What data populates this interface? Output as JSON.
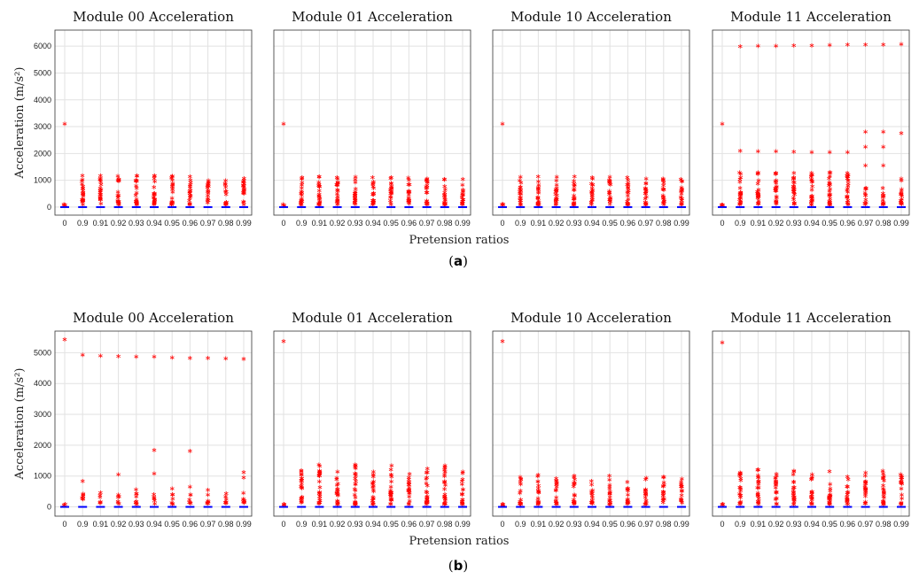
{
  "figure": {
    "rows": [
      {
        "caption": "a",
        "xlabel": "Pretension ratios",
        "ylabel": "Acceleration (m/s²)",
        "ylim": [
          -300,
          6600
        ],
        "yticks": [
          0,
          1000,
          2000,
          3000,
          4000,
          5000,
          6000
        ]
      },
      {
        "caption": "b",
        "xlabel": "Pretension ratios",
        "ylabel": "Acceleration (m/s²)",
        "ylim": [
          -300,
          5700
        ],
        "yticks": [
          0,
          1000,
          2000,
          3000,
          4000,
          5000
        ]
      }
    ]
  },
  "chart_data": [
    {
      "type": "scatter",
      "title": "Module 00 Acceleration",
      "xlabel": "",
      "ylabel": "Acceleration (m/s²)",
      "categories": [
        "0",
        "0.9",
        "0.91",
        "0.92",
        "0.93",
        "0.94",
        "0.95",
        "0.96",
        "0.97",
        "0.98",
        "0.99"
      ],
      "ylim": [
        -300,
        6600
      ],
      "grid": true,
      "outlier_color": "#ff0000",
      "median_color": "#0000ff",
      "outlier_max": [
        3050,
        1080,
        1080,
        1070,
        1080,
        1080,
        1060,
        1040,
        900,
        900,
        980
      ],
      "isolated_outliers": []
    },
    {
      "type": "scatter",
      "title": "Module 01 Acceleration",
      "xlabel": "",
      "ylabel": "",
      "categories": [
        "0",
        "0.9",
        "0.91",
        "0.92",
        "0.93",
        "0.94",
        "0.95",
        "0.96",
        "0.97",
        "0.98",
        "0.99"
      ],
      "ylim": [
        -300,
        6600
      ],
      "grid": true,
      "outlier_color": "#ff0000",
      "median_color": "#0000ff",
      "outlier_max": [
        3050,
        1020,
        1040,
        1020,
        1030,
        1010,
        1020,
        1000,
        960,
        950,
        940
      ],
      "isolated_outliers": []
    },
    {
      "type": "scatter",
      "title": "Module 10 Acceleration",
      "xlabel": "",
      "ylabel": "",
      "categories": [
        "0",
        "0.9",
        "0.91",
        "0.92",
        "0.93",
        "0.94",
        "0.95",
        "0.96",
        "0.97",
        "0.98",
        "0.99"
      ],
      "ylim": [
        -300,
        6600
      ],
      "grid": true,
      "outlier_color": "#ff0000",
      "median_color": "#0000ff",
      "outlier_max": [
        3050,
        1030,
        1050,
        1030,
        1040,
        1010,
        1030,
        1010,
        970,
        960,
        950
      ],
      "isolated_outliers": []
    },
    {
      "type": "scatter",
      "title": "Module 11 Acceleration",
      "xlabel": "",
      "ylabel": "",
      "categories": [
        "0",
        "0.9",
        "0.91",
        "0.92",
        "0.93",
        "0.94",
        "0.95",
        "0.96",
        "0.97",
        "0.98",
        "0.99"
      ],
      "ylim": [
        -300,
        6600
      ],
      "grid": true,
      "outlier_color": "#ff0000",
      "median_color": "#0000ff",
      "outlier_max": [
        3050,
        1200,
        1200,
        1180,
        1180,
        1180,
        1200,
        1180,
        620,
        620,
        900
      ],
      "isolated_outliers": [
        [
          1,
          5940
        ],
        [
          2,
          5950
        ],
        [
          3,
          5960
        ],
        [
          4,
          5970
        ],
        [
          5,
          5980
        ],
        [
          6,
          5990
        ],
        [
          7,
          6000
        ],
        [
          8,
          6000
        ],
        [
          9,
          6010
        ],
        [
          10,
          6020
        ],
        [
          1,
          2040
        ],
        [
          2,
          2030
        ],
        [
          3,
          2020
        ],
        [
          4,
          2010
        ],
        [
          5,
          2000
        ],
        [
          6,
          2000
        ],
        [
          7,
          2000
        ],
        [
          8,
          2750
        ],
        [
          8,
          2200
        ],
        [
          8,
          1500
        ],
        [
          9,
          2750
        ],
        [
          9,
          2200
        ],
        [
          9,
          1500
        ],
        [
          10,
          2700
        ],
        [
          10,
          1000
        ]
      ]
    },
    {
      "type": "scatter",
      "title": "Module 00 Acceleration",
      "xlabel": "",
      "ylabel": "Acceleration (m/s²)",
      "categories": [
        "0",
        "0.9",
        "0.91",
        "0.92",
        "0.93",
        "0.94",
        "0.95",
        "0.96",
        "0.97",
        "0.98",
        "0.99"
      ],
      "ylim": [
        -300,
        5700
      ],
      "grid": true,
      "outlier_color": "#ff0000",
      "median_color": "#0000ff",
      "outlier_max": [
        0,
        330,
        380,
        300,
        480,
        320,
        320,
        310,
        310,
        350,
        360
      ],
      "isolated_outliers": [
        [
          0,
          5380
        ],
        [
          1,
          4880
        ],
        [
          2,
          4850
        ],
        [
          3,
          4840
        ],
        [
          4,
          4830
        ],
        [
          5,
          4820
        ],
        [
          6,
          4800
        ],
        [
          7,
          4780
        ],
        [
          8,
          4780
        ],
        [
          9,
          4770
        ],
        [
          10,
          4750
        ],
        [
          1,
          790
        ],
        [
          3,
          1000
        ],
        [
          5,
          1800
        ],
        [
          5,
          1030
        ],
        [
          6,
          540
        ],
        [
          7,
          1770
        ],
        [
          7,
          600
        ],
        [
          8,
          510
        ],
        [
          10,
          1080
        ],
        [
          10,
          910
        ]
      ]
    },
    {
      "type": "scatter",
      "title": "Module 01 Acceleration",
      "xlabel": "",
      "ylabel": "",
      "categories": [
        "0",
        "0.9",
        "0.91",
        "0.92",
        "0.93",
        "0.94",
        "0.95",
        "0.96",
        "0.97",
        "0.98",
        "0.99"
      ],
      "ylim": [
        -300,
        5700
      ],
      "grid": true,
      "outlier_color": "#ff0000",
      "median_color": "#0000ff",
      "outlier_max": [
        5320,
        1100,
        1280,
        1050,
        1280,
        1050,
        1260,
        980,
        1150,
        1260,
        1050
      ],
      "isolated_outliers": []
    },
    {
      "type": "scatter",
      "title": "Module 10 Acceleration",
      "xlabel": "",
      "ylabel": "",
      "categories": [
        "0",
        "0.9",
        "0.91",
        "0.92",
        "0.93",
        "0.94",
        "0.95",
        "0.96",
        "0.97",
        "0.98",
        "0.99"
      ],
      "ylim": [
        -300,
        5700
      ],
      "grid": true,
      "outlier_color": "#ff0000",
      "median_color": "#0000ff",
      "outlier_max": [
        5320,
        880,
        950,
        830,
        930,
        750,
        920,
        720,
        850,
        880,
        820
      ],
      "isolated_outliers": []
    },
    {
      "type": "scatter",
      "title": "Module 11 Acceleration",
      "xlabel": "",
      "ylabel": "",
      "categories": [
        "0",
        "0.9",
        "0.91",
        "0.92",
        "0.93",
        "0.94",
        "0.95",
        "0.96",
        "0.97",
        "0.98",
        "0.99"
      ],
      "ylim": [
        -300,
        5700
      ],
      "grid": true,
      "outlier_color": "#ff0000",
      "median_color": "#0000ff",
      "outlier_max": [
        5280,
        1020,
        1120,
        980,
        1080,
        960,
        1060,
        900,
        1020,
        1080,
        960
      ],
      "isolated_outliers": []
    }
  ]
}
